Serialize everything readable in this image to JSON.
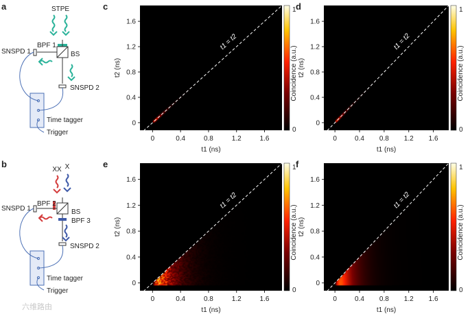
{
  "panel_letters": [
    "a",
    "b",
    "c",
    "d",
    "e",
    "f"
  ],
  "setup_a": {
    "source": "STPE",
    "filter": "BPF 1",
    "splitter": "BS",
    "detector1": "SNSPD 1",
    "detector2": "SNSPD 2",
    "tagger": "Time tagger",
    "trigger": "Trigger"
  },
  "setup_b": {
    "source1": "XX",
    "source2": "X",
    "filter1": "BPF 2",
    "filter2": "BPF 3",
    "splitter": "BS",
    "detector1": "SNSPD 1",
    "detector2": "SNSPD 2",
    "tagger": "Time tagger",
    "trigger": "Trigger"
  },
  "colors": {
    "photon_a": "#2bb39a",
    "photon_xx": "#d43c3c",
    "photon_x": "#3f5aa8",
    "wire": "#4a6fb5"
  },
  "colorbar": {
    "label": "Coincidence (a.u.)",
    "max_label": "1",
    "min_label": "0"
  },
  "diagonal_label": "t1 = t2",
  "watermark": "六维路由",
  "chart_data": [
    {
      "panel": "c",
      "type": "heatmap",
      "xlabel": "t1 (ns)",
      "ylabel": "t2 (ns)",
      "xticks": [
        "0",
        "0.4",
        "0.8",
        "1.2",
        "1.6"
      ],
      "yticks": [
        "0",
        "0.4",
        "0.8",
        "1.2",
        "1.6"
      ],
      "xlim": [
        -0.18,
        1.85
      ],
      "ylim": [
        -0.12,
        1.85
      ],
      "distribution": "diagonal",
      "decay_ns": 0.12,
      "width_ns": 0.015
    },
    {
      "panel": "d",
      "type": "heatmap",
      "xlabel": "t1 (ns)",
      "ylabel": "t2 (ns)",
      "xticks": [
        "0",
        "0.4",
        "0.8",
        "1.2",
        "1.6"
      ],
      "yticks": [
        "0",
        "0.4",
        "0.8",
        "1.2",
        "1.6"
      ],
      "xlim": [
        -0.18,
        1.85
      ],
      "ylim": [
        -0.12,
        1.85
      ],
      "distribution": "diagonal",
      "decay_ns": 0.13,
      "width_ns": 0.015
    },
    {
      "panel": "e",
      "type": "heatmap",
      "xlabel": "t1 (ns)",
      "ylabel": "t2 (ns)",
      "xticks": [
        "0",
        "0.4",
        "0.8",
        "1.2",
        "1.6"
      ],
      "yticks": [
        "0",
        "0.4",
        "0.8",
        "1.2",
        "1.6"
      ],
      "xlim": [
        -0.18,
        1.85
      ],
      "ylim": [
        -0.12,
        1.85
      ],
      "distribution": "cascade",
      "rise_ns": 0.06,
      "decay1_ns": 0.25,
      "decay2_ns": 0.12,
      "noise": true
    },
    {
      "panel": "f",
      "type": "heatmap",
      "xlabel": "t1 (ns)",
      "ylabel": "t2 (ns)",
      "xticks": [
        "0",
        "0.4",
        "0.8",
        "1.2",
        "1.6"
      ],
      "yticks": [
        "0",
        "0.4",
        "0.8",
        "1.2",
        "1.6"
      ],
      "xlim": [
        -0.18,
        1.85
      ],
      "ylim": [
        -0.12,
        1.85
      ],
      "distribution": "cascade",
      "rise_ns": 0.06,
      "decay1_ns": 0.25,
      "decay2_ns": 0.12,
      "noise": false
    }
  ]
}
